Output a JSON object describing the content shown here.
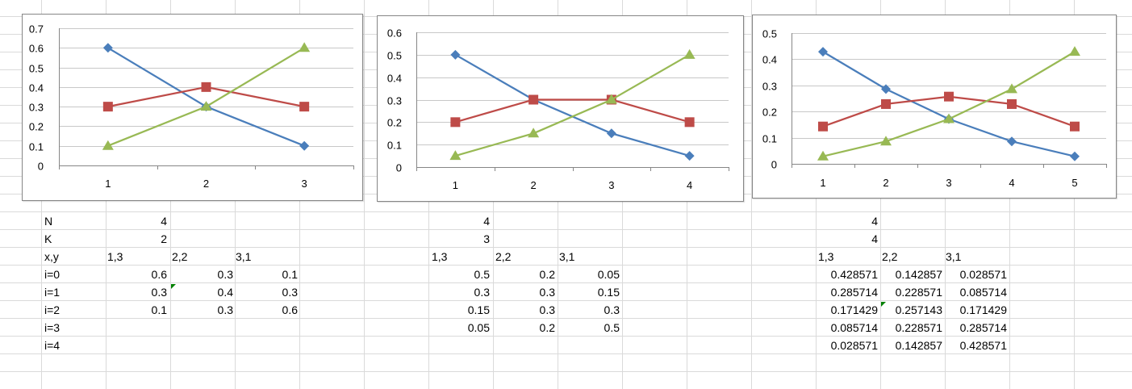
{
  "colors": {
    "series_blue": "#4a7ebb",
    "series_red": "#be4b48",
    "series_green": "#98b954",
    "gridline": "#c8c8c8",
    "cell_border": "#dadada",
    "error_marker": "#008000"
  },
  "chart_data": [
    {
      "type": "line",
      "categories": [
        "1",
        "2",
        "3"
      ],
      "y_ticks": [
        "0",
        "0.1",
        "0.2",
        "0.3",
        "0.4",
        "0.5",
        "0.6",
        "0.7"
      ],
      "ylim": [
        0,
        0.7
      ],
      "grid": true,
      "legend": "none",
      "series": [
        {
          "values": [
            0.6,
            0.3,
            0.1
          ],
          "color": "#4a7ebb",
          "marker": "diamond"
        },
        {
          "values": [
            0.3,
            0.4,
            0.3
          ],
          "color": "#be4b48",
          "marker": "square"
        },
        {
          "values": [
            0.1,
            0.3,
            0.6
          ],
          "color": "#98b954",
          "marker": "triangle"
        }
      ]
    },
    {
      "type": "line",
      "categories": [
        "1",
        "2",
        "3",
        "4"
      ],
      "y_ticks": [
        "0",
        "0.1",
        "0.2",
        "0.3",
        "0.4",
        "0.5",
        "0.6"
      ],
      "ylim": [
        0,
        0.6
      ],
      "grid": true,
      "legend": "none",
      "series": [
        {
          "values": [
            0.5,
            0.3,
            0.15,
            0.05
          ],
          "color": "#4a7ebb",
          "marker": "diamond"
        },
        {
          "values": [
            0.2,
            0.3,
            0.3,
            0.2
          ],
          "color": "#be4b48",
          "marker": "square"
        },
        {
          "values": [
            0.05,
            0.15,
            0.3,
            0.5
          ],
          "color": "#98b954",
          "marker": "triangle"
        }
      ]
    },
    {
      "type": "line",
      "categories": [
        "1",
        "2",
        "3",
        "4",
        "5"
      ],
      "y_ticks": [
        "0",
        "0.1",
        "0.2",
        "0.3",
        "0.4",
        "0.5"
      ],
      "ylim": [
        0,
        0.5
      ],
      "grid": true,
      "legend": "none",
      "series": [
        {
          "values": [
            0.428571,
            0.285714,
            0.171429,
            0.085714,
            0.028571
          ],
          "color": "#4a7ebb",
          "marker": "diamond"
        },
        {
          "values": [
            0.142857,
            0.228571,
            0.257143,
            0.228571,
            0.142857
          ],
          "color": "#be4b48",
          "marker": "square"
        },
        {
          "values": [
            0.028571,
            0.085714,
            0.171429,
            0.285714,
            0.428571
          ],
          "color": "#98b954",
          "marker": "triangle"
        }
      ]
    }
  ],
  "sheet": {
    "row_labels": [
      "N",
      "K",
      "x,y",
      "i=0",
      "i=1",
      "i=2",
      "i=3",
      "i=4"
    ],
    "table1": {
      "N": "4",
      "K": "2",
      "headers": [
        "1,3",
        "2,2",
        "3,1"
      ],
      "rows": [
        [
          "0.6",
          "0.3",
          "0.1"
        ],
        [
          "0.3",
          "0.4",
          "0.3"
        ],
        [
          "0.1",
          "0.3",
          "0.6"
        ]
      ]
    },
    "table2": {
      "N": "4",
      "K": "3",
      "headers": [
        "1,3",
        "2,2",
        "3,1"
      ],
      "rows": [
        [
          "0.5",
          "0.2",
          "0.05"
        ],
        [
          "0.3",
          "0.3",
          "0.15"
        ],
        [
          "0.15",
          "0.3",
          "0.3"
        ],
        [
          "0.05",
          "0.2",
          "0.5"
        ]
      ]
    },
    "table3": {
      "N": "4",
      "K": "4",
      "headers": [
        "1,3",
        "2,2",
        "3,1"
      ],
      "rows": [
        [
          "0.428571",
          "0.142857",
          "0.028571"
        ],
        [
          "0.285714",
          "0.228571",
          "0.085714"
        ],
        [
          "0.171429",
          "0.257143",
          "0.171429"
        ],
        [
          "0.085714",
          "0.228571",
          "0.285714"
        ],
        [
          "0.028571",
          "0.142857",
          "0.428571"
        ]
      ]
    }
  }
}
